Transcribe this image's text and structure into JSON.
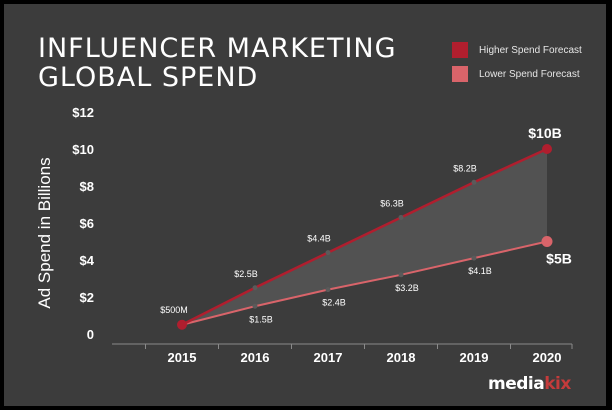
{
  "title_lines": [
    "INFLUENCER MARKETING",
    "GLOBAL SPEND"
  ],
  "legend": {
    "high_label": "Higher Spend Forecast",
    "low_label": "Lower Spend Forecast"
  },
  "brand": {
    "part1": "media",
    "part2": "kix"
  },
  "colors": {
    "background": "#3c3c3c",
    "high": "#b01e2e",
    "low": "#d9646a",
    "fill": "#565656",
    "axis": "#8a8a8a",
    "text": "#ffffff"
  },
  "chart_data": {
    "type": "line",
    "title": "INFLUENCER MARKETING GLOBAL SPEND",
    "xlabel": "",
    "ylabel": "Ad Spend in Billions",
    "categories": [
      "2015",
      "2016",
      "2017",
      "2018",
      "2019",
      "2020"
    ],
    "ylim": [
      0,
      12
    ],
    "yticks": [
      0,
      2,
      4,
      6,
      8,
      10,
      12
    ],
    "ytick_labels": [
      "0",
      "$2",
      "$4",
      "$6",
      "$8",
      "$10",
      "$12"
    ],
    "series": [
      {
        "name": "Higher Spend Forecast",
        "values": [
          0.5,
          2.5,
          4.4,
          6.3,
          8.2,
          10
        ],
        "labels": [
          "$500M",
          "$2.5B",
          "$4.4B",
          "$6.3B",
          "$8.2B",
          "$10B"
        ]
      },
      {
        "name": "Lower Spend Forecast",
        "values": [
          0.5,
          1.5,
          2.4,
          3.2,
          4.1,
          5
        ],
        "labels": [
          "",
          "$1.5B",
          "$2.4B",
          "$3.2B",
          "$4.1B",
          "$5B"
        ]
      }
    ],
    "fill_between": true,
    "legend_position": "top-right",
    "grid": false
  }
}
